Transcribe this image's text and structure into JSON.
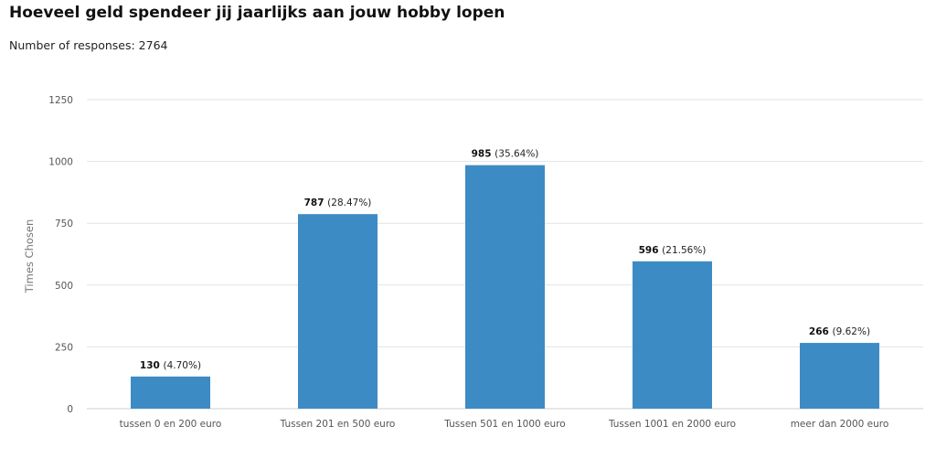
{
  "header": {
    "title": "Hoeveel geld spendeer jij jaarlijks aan jouw hobby lopen",
    "subtitle": "Number of responses: 2764"
  },
  "chart_data": {
    "type": "bar",
    "title": "Hoeveel geld spendeer jij jaarlijks aan jouw hobby lopen",
    "xlabel": "",
    "ylabel": "Times Chosen",
    "ylim": [
      0,
      1250
    ],
    "yticks": [
      0,
      250,
      500,
      750,
      1000,
      1250
    ],
    "grid": true,
    "bar_color": "#3d8bc4",
    "categories": [
      "tussen 0 en 200 euro",
      "Tussen 201 en 500 euro",
      "Tussen 501 en 1000 euro",
      "Tussen 1001 en 2000 euro",
      "meer dan 2000 euro"
    ],
    "values": [
      130,
      787,
      985,
      596,
      266
    ],
    "percent_labels": [
      "(4.70%)",
      "(28.47%)",
      "(35.64%)",
      "(21.56%)",
      "(9.62%)"
    ]
  }
}
